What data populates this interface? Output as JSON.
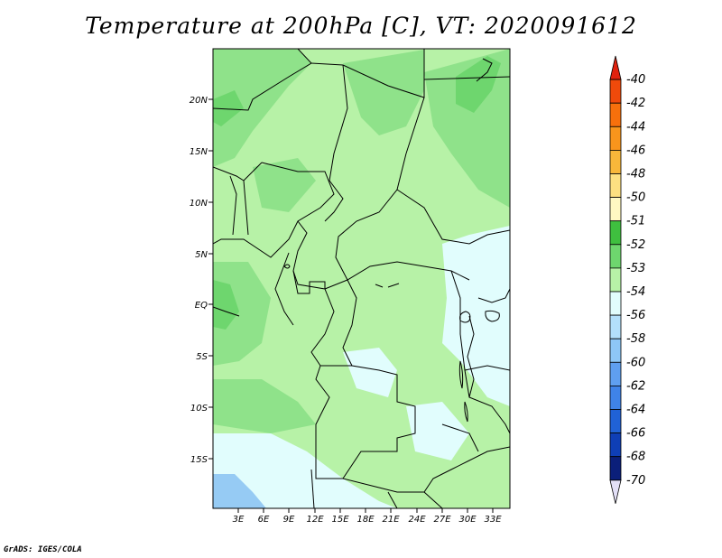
{
  "title": "Temperature at 200hPa [C], VT: 2020091612",
  "credit": "GrADS: IGES/COLA",
  "lat_ticks": [
    "20N",
    "15N",
    "10N",
    "5N",
    "EQ",
    "5S",
    "10S",
    "15S"
  ],
  "lon_ticks": [
    "3E",
    "6E",
    "9E",
    "12E",
    "15E",
    "18E",
    "21E",
    "24E",
    "27E",
    "30E",
    "33E"
  ],
  "colorbar": {
    "labels": [
      "-40",
      "-42",
      "-44",
      "-46",
      "-48",
      "-50",
      "-51",
      "-52",
      "-53",
      "-54",
      "-56",
      "-58",
      "-60",
      "-62",
      "-64",
      "-66",
      "-68",
      "-70"
    ],
    "colors": [
      "#e0220e",
      "#f04a0b",
      "#f7700c",
      "#f8951c",
      "#f8b73a",
      "#fde081",
      "#fff8c2",
      "#3fbf3f",
      "#6ed66e",
      "#b7f2a7",
      "#e1fdfd",
      "#b3e0fb",
      "#8ec7f7",
      "#5f9ff0",
      "#3f83e8",
      "#2062d6",
      "#0f3fb6",
      "#0b1f7a",
      "#e3e0f7"
    ]
  },
  "map": {
    "background_color": "#b7f2a7",
    "darker_green": "#6ed66e",
    "mid_green": "#8fe28a",
    "pale_cyan": "#e1fdfd",
    "light_blue": "#96cbf4"
  }
}
